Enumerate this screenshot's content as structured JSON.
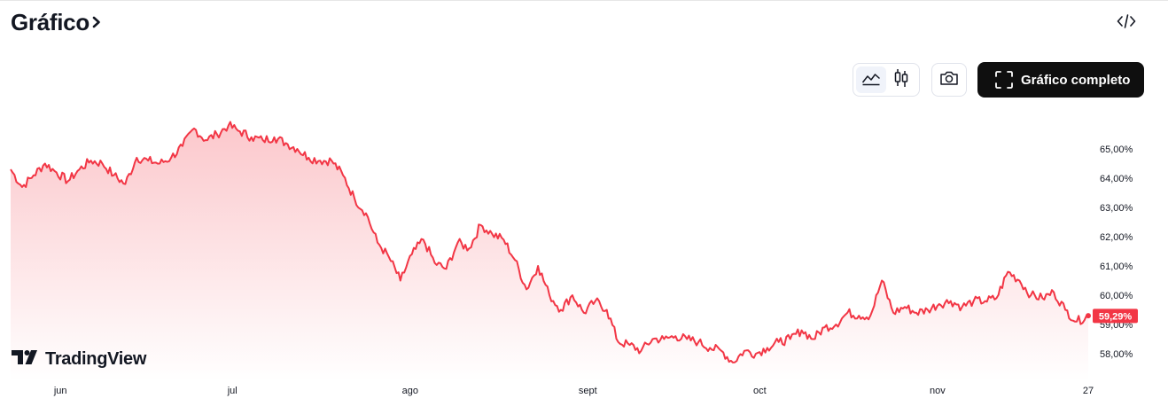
{
  "header": {
    "title": "Gráfico",
    "full_chart_label": "Gráfico completo"
  },
  "icons": {
    "title_chevron": "chevron-right-icon",
    "embed": "code-embed-icon",
    "area_chart": "area-chart-icon",
    "candles": "candlestick-icon",
    "snapshot": "camera-icon",
    "fullscreen": "fullscreen-icon"
  },
  "branding": {
    "logo_text": "TradingView"
  },
  "colors": {
    "line": "#f23645",
    "fill_top": "rgba(242,54,69,0.28)",
    "fill_bottom": "rgba(242,54,69,0.0)",
    "price_tag": "#f23645"
  },
  "chart_data": {
    "type": "area",
    "x_labels": [
      "jun",
      "jul",
      "ago",
      "sept",
      "oct",
      "nov",
      "27"
    ],
    "y_tick_labels": [
      "65,00%",
      "64,00%",
      "63,00%",
      "62,00%",
      "61,00%",
      "60,00%",
      "59,00%",
      "58,00%"
    ],
    "y_ticks": [
      65,
      64,
      63,
      62,
      61,
      60,
      59,
      58
    ],
    "ylim": [
      57.2,
      65.6
    ],
    "last_value_label": "59,29%",
    "last_value": 59.29,
    "x": [
      "2024-05-23",
      "2024-05-25",
      "2024-05-27",
      "2024-05-29",
      "2024-05-31",
      "2024-06-02",
      "2024-06-04",
      "2024-06-06",
      "2024-06-08",
      "2024-06-10",
      "2024-06-12",
      "2024-06-14",
      "2024-06-16",
      "2024-06-18",
      "2024-06-20",
      "2024-06-22",
      "2024-06-24",
      "2024-06-26",
      "2024-06-28",
      "2024-06-30",
      "2024-07-02",
      "2024-07-04",
      "2024-07-06",
      "2024-07-08",
      "2024-07-10",
      "2024-07-12",
      "2024-07-14",
      "2024-07-16",
      "2024-07-18",
      "2024-07-20",
      "2024-07-22",
      "2024-07-24",
      "2024-07-26",
      "2024-07-28",
      "2024-07-30",
      "2024-08-01",
      "2024-08-03",
      "2024-08-05",
      "2024-08-07",
      "2024-08-09",
      "2024-08-11",
      "2024-08-13",
      "2024-08-15",
      "2024-08-17",
      "2024-08-19",
      "2024-08-21",
      "2024-08-23",
      "2024-08-25",
      "2024-08-27",
      "2024-08-29",
      "2024-08-31",
      "2024-09-02",
      "2024-09-04",
      "2024-09-06",
      "2024-09-08",
      "2024-09-10",
      "2024-09-12",
      "2024-09-14",
      "2024-09-16",
      "2024-09-18",
      "2024-09-20",
      "2024-09-22",
      "2024-09-24",
      "2024-09-26",
      "2024-09-28",
      "2024-09-30",
      "2024-10-02",
      "2024-10-04",
      "2024-10-06",
      "2024-10-08",
      "2024-10-10",
      "2024-10-12",
      "2024-10-14",
      "2024-10-16",
      "2024-10-18",
      "2024-10-20",
      "2024-10-22",
      "2024-10-24",
      "2024-10-26",
      "2024-10-28",
      "2024-10-30",
      "2024-11-01",
      "2024-11-03",
      "2024-11-05",
      "2024-11-07",
      "2024-11-09",
      "2024-11-11",
      "2024-11-13",
      "2024-11-15",
      "2024-11-17",
      "2024-11-19",
      "2024-11-21",
      "2024-11-23",
      "2024-11-25",
      "2024-11-27"
    ],
    "values": [
      64.3,
      63.7,
      64.1,
      64.5,
      64.2,
      63.9,
      64.3,
      64.6,
      64.5,
      64.1,
      63.8,
      64.7,
      64.6,
      64.5,
      64.7,
      65.1,
      65.7,
      65.3,
      65.5,
      65.8,
      65.6,
      65.4,
      65.3,
      65.4,
      65.2,
      65.0,
      64.7,
      64.6,
      64.6,
      64.1,
      63.3,
      62.8,
      61.8,
      61.3,
      60.5,
      61.4,
      61.9,
      61.1,
      60.9,
      61.8,
      61.6,
      62.4,
      62.1,
      61.9,
      61.2,
      60.2,
      61.0,
      60.0,
      59.5,
      60.0,
      59.4,
      59.8,
      59.5,
      58.4,
      58.3,
      58.1,
      58.5,
      58.5,
      58.6,
      58.5,
      58.4,
      58.2,
      58.1,
      57.7,
      58.1,
      58.0,
      58.2,
      58.4,
      58.5,
      58.8,
      58.5,
      58.9,
      59.0,
      59.4,
      59.3,
      59.3,
      60.5,
      59.4,
      59.6,
      59.4,
      59.5,
      59.7,
      59.8,
      59.6,
      59.8,
      59.8,
      59.9,
      60.8,
      60.5,
      60.0,
      59.9,
      60.1,
      59.5,
      59.1,
      59.3
    ]
  }
}
